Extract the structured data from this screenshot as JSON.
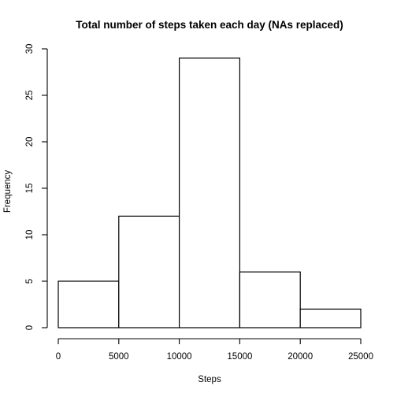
{
  "chart_data": {
    "type": "bar",
    "title": "Total number of steps taken each day (NAs replaced)",
    "xlabel": "Steps",
    "ylabel": "Frequency",
    "bins": [
      {
        "from": 0,
        "to": 5000,
        "count": 5
      },
      {
        "from": 5000,
        "to": 10000,
        "count": 12
      },
      {
        "from": 10000,
        "to": 15000,
        "count": 29
      },
      {
        "from": 15000,
        "to": 20000,
        "count": 6
      },
      {
        "from": 20000,
        "to": 25000,
        "count": 2
      }
    ],
    "xlim": [
      0,
      25000
    ],
    "ylim": [
      0,
      30
    ],
    "x_ticks": [
      "0",
      "5000",
      "10000",
      "15000",
      "20000",
      "25000"
    ],
    "y_ticks": [
      "0",
      "5",
      "10",
      "15",
      "20",
      "25",
      "30"
    ],
    "grid": false
  }
}
